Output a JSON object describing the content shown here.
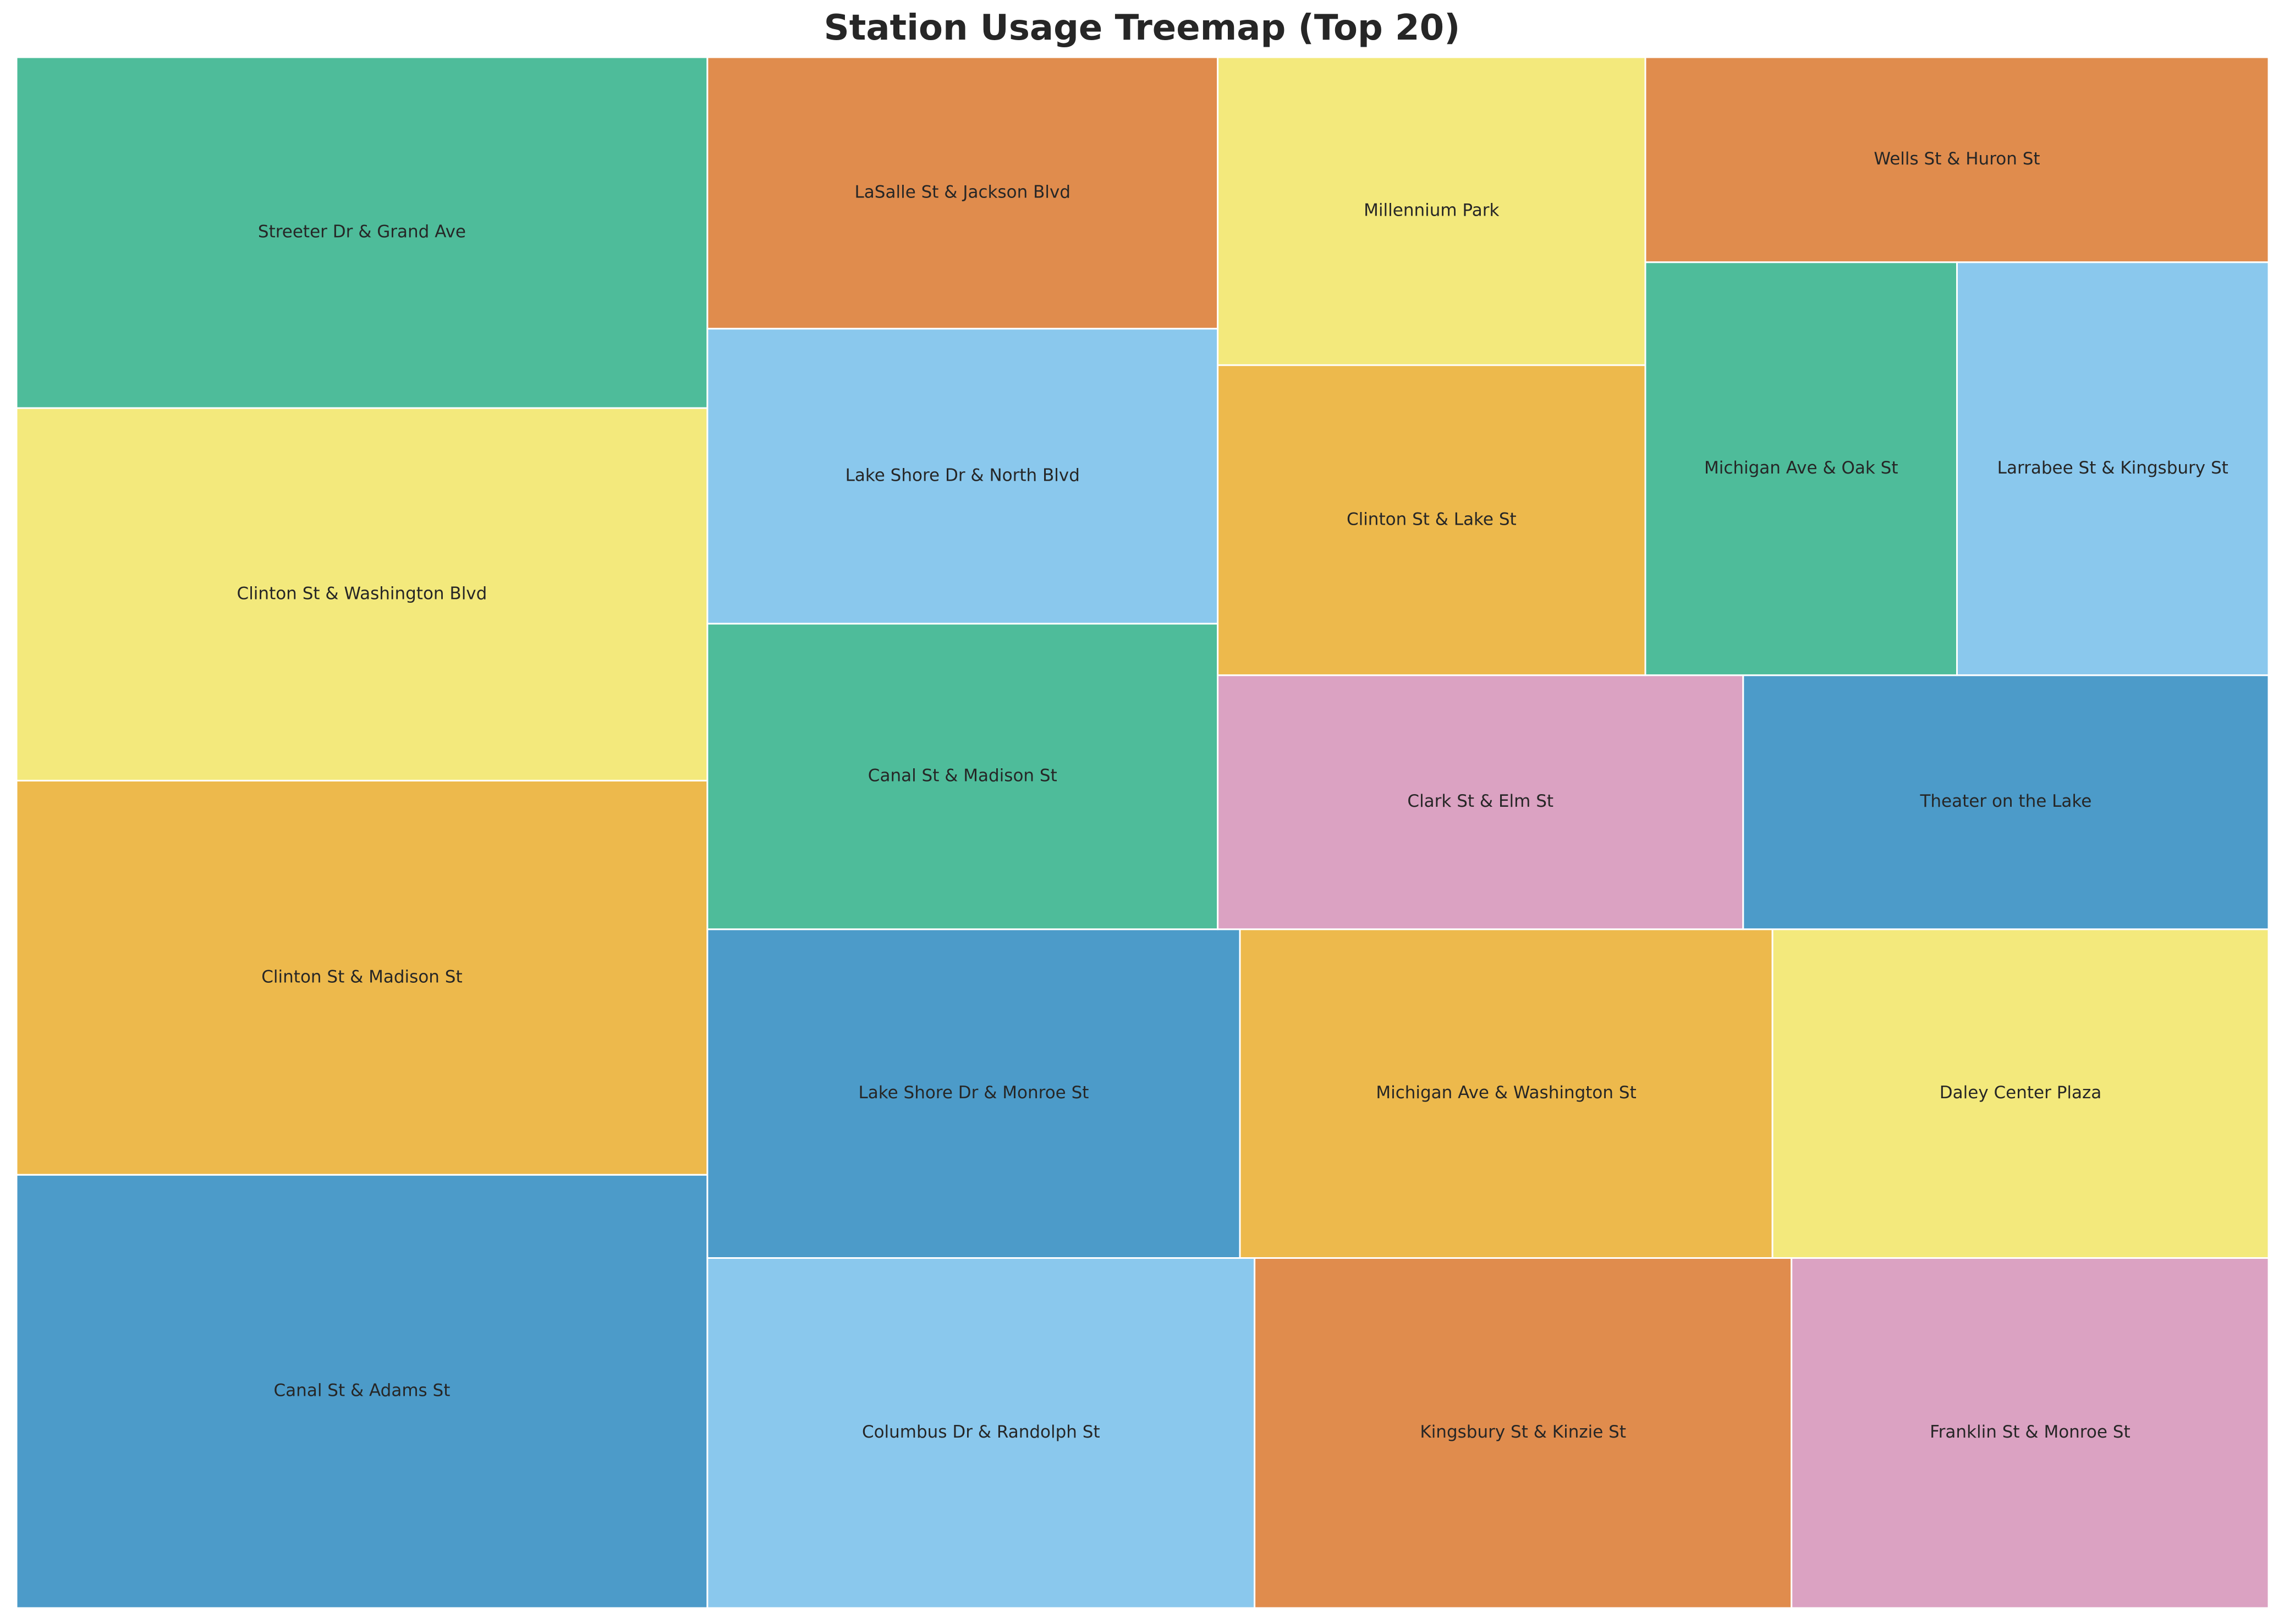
{
  "chart_data": {
    "type": "treemap",
    "title": "Station Usage Treemap (Top 20)",
    "palette": [
      "#4c9bc9",
      "#edb94c",
      "#f3e97c",
      "#4ebc9a",
      "#e08c4d",
      "#8ac8ed",
      "#dba2c2"
    ],
    "tile_border_color": "#ffffff",
    "stations": [
      {
        "name": "Canal St & Adams St",
        "value": 100,
        "color": "#4c9bc9"
      },
      {
        "name": "Clinton St & Madison St",
        "value": 91,
        "color": "#edb94c"
      },
      {
        "name": "Clinton St & Washington Blvd",
        "value": 86,
        "color": "#f3e97c"
      },
      {
        "name": "Streeter Dr & Grand Ave",
        "value": 81,
        "color": "#4ebc9a"
      },
      {
        "name": "Columbus Dr & Randolph St",
        "value": 64,
        "color": "#8ac8ed"
      },
      {
        "name": "Kingsbury St & Kinzie St",
        "value": 62.8,
        "color": "#e08c4d"
      },
      {
        "name": "Franklin St & Monroe St",
        "value": 55.8,
        "color": "#dba2c2"
      },
      {
        "name": "Lake Shore Dr & Monroe St",
        "value": 58.5,
        "color": "#4c9bc9"
      },
      {
        "name": "Michigan Ave & Washington St",
        "value": 58.5,
        "color": "#edb94c"
      },
      {
        "name": "Daley Center Plaza",
        "value": 54.5,
        "color": "#f3e97c"
      },
      {
        "name": "Canal St & Madison St",
        "value": 52.1,
        "color": "#4ebc9a"
      },
      {
        "name": "Lake Shore Dr & North Blvd",
        "value": 50.3,
        "color": "#8ac8ed"
      },
      {
        "name": "LaSalle St & Jackson Blvd",
        "value": 46.3,
        "color": "#e08c4d"
      },
      {
        "name": "Clark St & Elm St",
        "value": 44.6,
        "color": "#dba2c2"
      },
      {
        "name": "Theater on the Lake",
        "value": 44.6,
        "color": "#4c9bc9"
      },
      {
        "name": "Clinton St & Lake St",
        "value": 44.3,
        "color": "#edb94c"
      },
      {
        "name": "Millennium Park",
        "value": 44.0,
        "color": "#f3e97c"
      },
      {
        "name": "Michigan Ave & Oak St",
        "value": 43.0,
        "color": "#4ebc9a"
      },
      {
        "name": "Larrabee St & Kingsbury St",
        "value": 43.0,
        "color": "#8ac8ed"
      },
      {
        "name": "Wells St & Huron St",
        "value": 42.7,
        "color": "#e08c4d"
      }
    ]
  }
}
